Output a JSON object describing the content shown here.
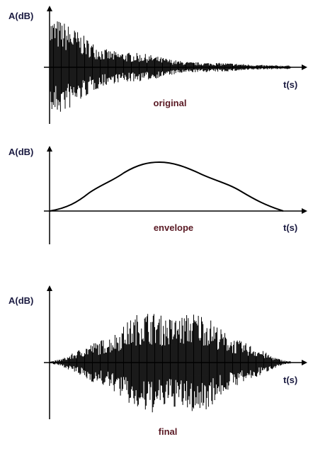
{
  "panels": [
    {
      "y_label": "A(dB)",
      "x_label": "t(s)",
      "caption": "original"
    },
    {
      "y_label": "A(dB)",
      "x_label": "t(s)",
      "caption": "envelope"
    },
    {
      "y_label": "A(dB)",
      "x_label": "t(s)",
      "caption": "final"
    }
  ]
}
